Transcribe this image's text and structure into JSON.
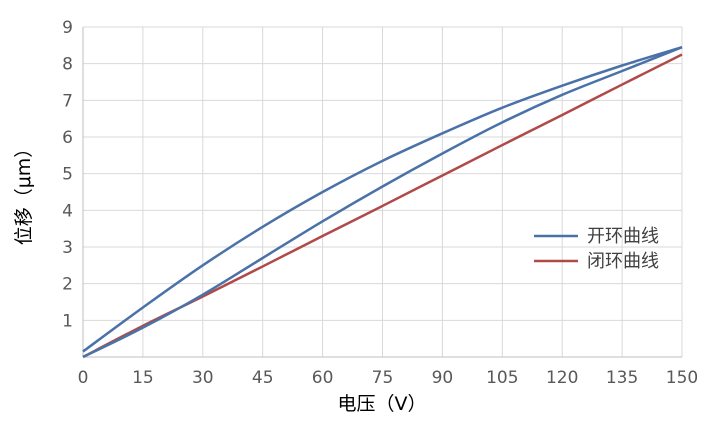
{
  "chart_data": {
    "type": "line",
    "xlabel": "电压（V）",
    "ylabel": "位移（μm）",
    "xlim": [
      0,
      150
    ],
    "ylim": [
      0,
      9
    ],
    "x_ticks": [
      "0",
      "15",
      "30",
      "45",
      "60",
      "75",
      "90",
      "105",
      "120",
      "135",
      "150"
    ],
    "y_ticks": [
      "1",
      "2",
      "3",
      "4",
      "5",
      "6",
      "7",
      "8",
      "9"
    ],
    "grid": true,
    "legend_position": "right",
    "series": [
      {
        "name": "开环曲线",
        "color": "#4a72a8",
        "kind": "hysteresis-loop",
        "upper": {
          "x": [
            0,
            15,
            30,
            45,
            60,
            75,
            90,
            105,
            120,
            135,
            150
          ],
          "y": [
            0.15,
            1.35,
            2.5,
            3.55,
            4.5,
            5.35,
            6.1,
            6.8,
            7.4,
            7.95,
            8.45
          ]
        },
        "lower": {
          "x": [
            0,
            15,
            30,
            45,
            60,
            75,
            90,
            105,
            120,
            135,
            150
          ],
          "y": [
            0.0,
            0.8,
            1.7,
            2.7,
            3.7,
            4.65,
            5.55,
            6.4,
            7.15,
            7.8,
            8.45
          ]
        }
      },
      {
        "name": "闭环曲线",
        "color": "#b04a48",
        "kind": "line",
        "x": [
          0,
          15,
          30,
          45,
          60,
          75,
          90,
          105,
          120,
          135,
          150
        ],
        "y": [
          0.0,
          0.85,
          1.65,
          2.47,
          3.3,
          4.12,
          4.95,
          5.78,
          6.6,
          7.43,
          8.25
        ]
      }
    ]
  }
}
